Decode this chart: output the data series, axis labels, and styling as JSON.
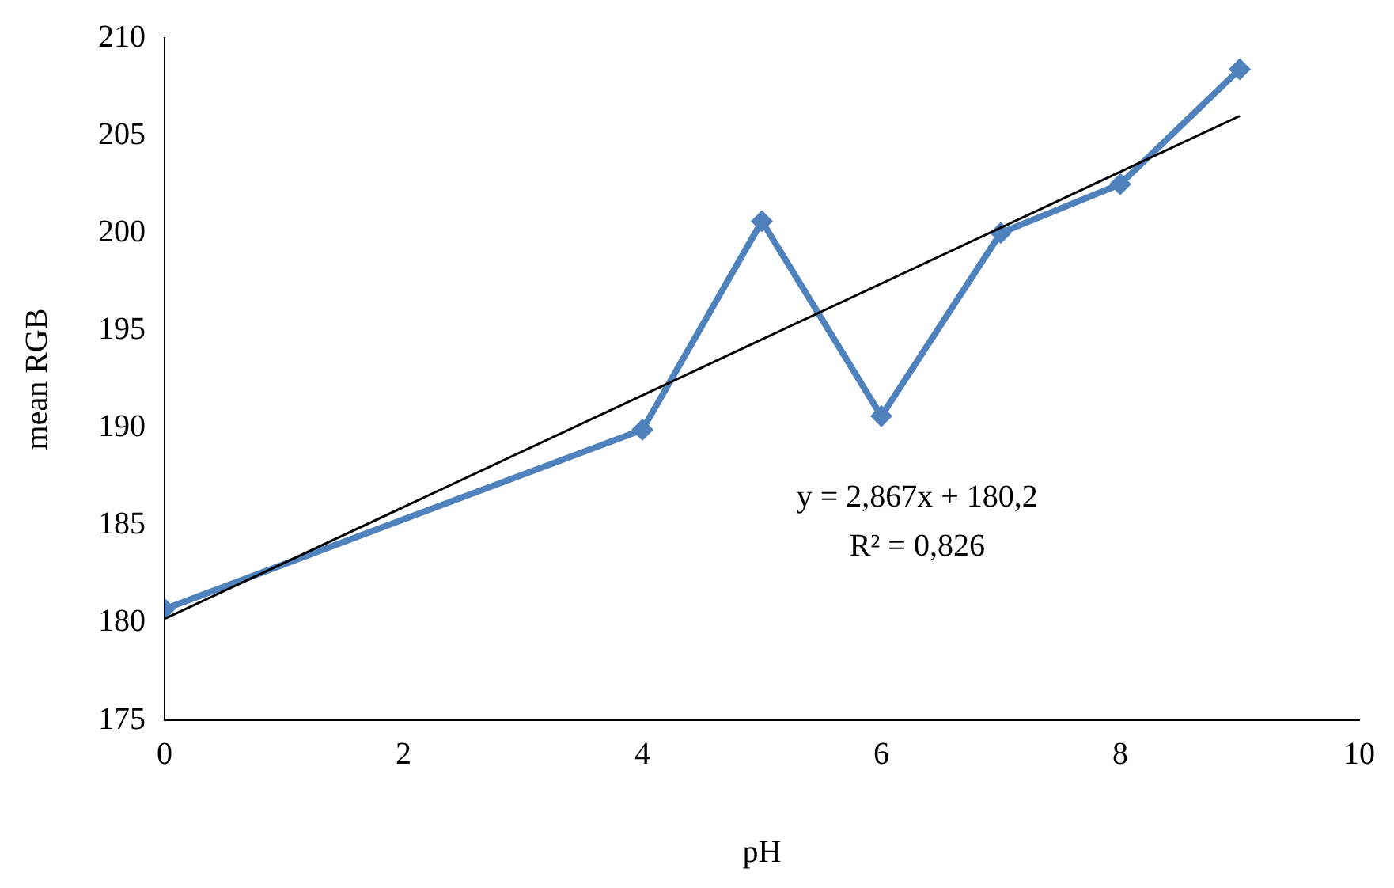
{
  "chart_data": {
    "type": "line",
    "xlabel": "pH",
    "ylabel": "mean RGB",
    "xlim": [
      0,
      10
    ],
    "xticks": [
      0,
      2,
      4,
      6,
      8,
      10
    ],
    "ylim": [
      175,
      210
    ],
    "yticks": [
      175,
      180,
      185,
      190,
      195,
      200,
      205,
      210
    ],
    "grid": false,
    "legend": false,
    "marker": "diamond",
    "line_style": "solid",
    "series": [
      {
        "color": "#4f81bd",
        "x": [
          0,
          4,
          5,
          6,
          7,
          8,
          9
        ],
        "values": [
          180.7,
          189.9,
          200.6,
          190.6,
          200.0,
          202.5,
          208.4
        ]
      },
      {
        "type": "line",
        "color": "#000000",
        "marker": "none",
        "x": [
          0,
          9
        ],
        "values": [
          180.2,
          206.0
        ]
      }
    ],
    "annotations": [
      "y = 2,867x + 180,2",
      "R² = 0,826"
    ]
  }
}
